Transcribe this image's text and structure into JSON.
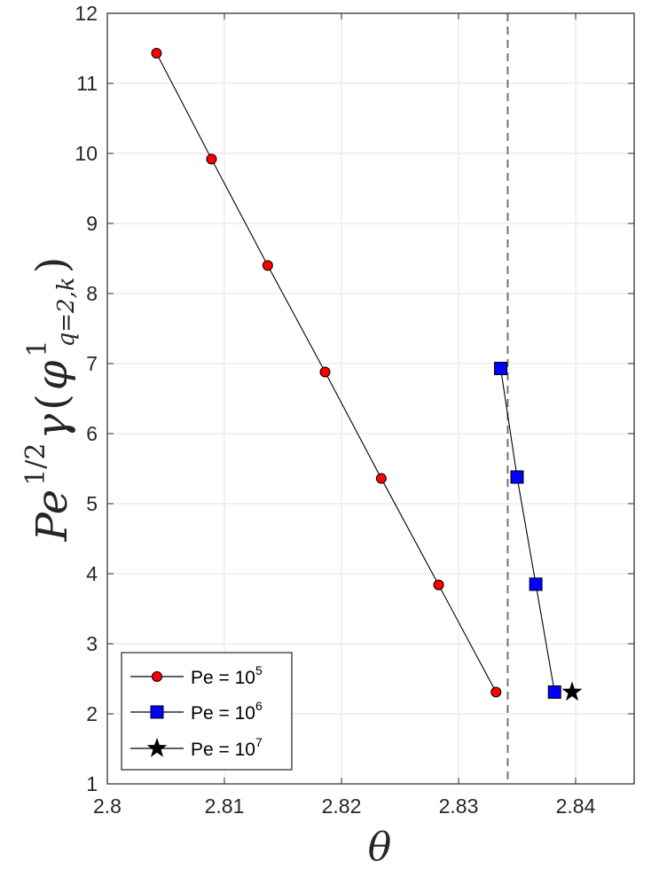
{
  "chart_data": {
    "type": "line",
    "xlabel": "θ",
    "ylabel": {
      "base": "Pe",
      "exponent": "1/2",
      "function": "γ",
      "open_paren": "(",
      "phi": "φ",
      "phi_superscript": "1",
      "phi_subscript": "q=2,k",
      "close_paren": ")"
    },
    "xlim": [
      2.8,
      2.845
    ],
    "ylim": [
      1,
      12
    ],
    "xticks": [
      2.8,
      2.81,
      2.82,
      2.83,
      2.84
    ],
    "yticks": [
      1,
      2,
      3,
      4,
      5,
      6,
      7,
      8,
      9,
      10,
      11,
      12
    ],
    "xtick_labels": [
      "2.8",
      "2.81",
      "2.82",
      "2.83",
      "2.84"
    ],
    "ytick_labels": [
      "1",
      "2",
      "3",
      "4",
      "5",
      "6",
      "7",
      "8",
      "9",
      "10",
      "11",
      "12"
    ],
    "grid": true,
    "legend_position": "bottom-left",
    "reference_line": {
      "x": 2.8342,
      "style": "dashed",
      "color": "#666666"
    },
    "series": [
      {
        "name": "Pe = 10^5",
        "legend_base": "Pe = 10",
        "legend_exp": "5",
        "marker": "circle",
        "color": "#ff0000",
        "line_color": "#000000",
        "x": [
          2.8042,
          2.8089,
          2.8137,
          2.8186,
          2.8234,
          2.8283,
          2.8332
        ],
        "y": [
          11.43,
          9.92,
          8.4,
          6.88,
          5.36,
          3.84,
          2.31
        ]
      },
      {
        "name": "Pe = 10^6",
        "legend_base": "Pe = 10",
        "legend_exp": "6",
        "marker": "square",
        "color": "#0000ff",
        "line_color": "#000000",
        "x": [
          2.8336,
          2.835,
          2.8366,
          2.8382
        ],
        "y": [
          6.93,
          5.38,
          3.85,
          2.31
        ]
      },
      {
        "name": "Pe = 10^7",
        "legend_base": "Pe = 10",
        "legend_exp": "7",
        "marker": "star",
        "color": "#000000",
        "line_color": "#000000",
        "x": [
          2.8397
        ],
        "y": [
          2.31
        ]
      }
    ]
  }
}
